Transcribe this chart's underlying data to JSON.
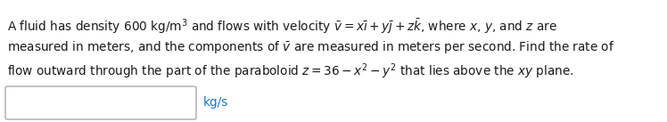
{
  "bg_color": "#ffffff",
  "text_color": "#1a1a1a",
  "blue_color": "#1874CD",
  "box_edge_color": "#aaaaaa",
  "kgs_label": "kg/s",
  "font_size": 9.8,
  "fig_width": 7.48,
  "fig_height": 1.37,
  "dpi": 100
}
